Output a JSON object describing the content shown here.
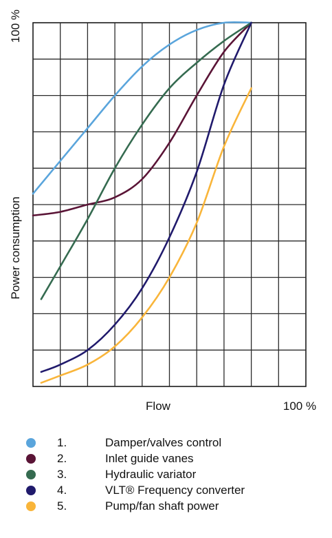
{
  "chart_data": {
    "type": "line",
    "title": "",
    "xlabel": "Flow",
    "ylabel": "Power consumption",
    "x_end_label": "100 %",
    "y_end_label": "100 %",
    "xlim": [
      0,
      100
    ],
    "ylim": [
      0,
      100
    ],
    "grid": true,
    "legend_position": "bottom",
    "series": [
      {
        "num": "1.",
        "name": "Damper/valves control",
        "color": "#5aa5dc",
        "points": [
          [
            0,
            53
          ],
          [
            10,
            62
          ],
          [
            20,
            71
          ],
          [
            30,
            80
          ],
          [
            40,
            88
          ],
          [
            50,
            94
          ],
          [
            60,
            98
          ],
          [
            70,
            100
          ],
          [
            80,
            100
          ]
        ]
      },
      {
        "num": "2.",
        "name": "Inlet guide vanes",
        "color": "#5a1436",
        "points": [
          [
            0,
            47
          ],
          [
            10,
            48
          ],
          [
            20,
            50
          ],
          [
            30,
            52
          ],
          [
            40,
            57
          ],
          [
            50,
            67
          ],
          [
            60,
            80
          ],
          [
            70,
            92
          ],
          [
            80,
            100
          ]
        ]
      },
      {
        "num": "3.",
        "name": "Hydraulic variator",
        "color": "#356b50",
        "points": [
          [
            3,
            24
          ],
          [
            10,
            33
          ],
          [
            20,
            46
          ],
          [
            30,
            60
          ],
          [
            40,
            72
          ],
          [
            50,
            82
          ],
          [
            60,
            89
          ],
          [
            70,
            95
          ],
          [
            80,
            100
          ]
        ]
      },
      {
        "num": "4.",
        "name": "VLT® Frequency converter",
        "color": "#201a6c",
        "points": [
          [
            3,
            4
          ],
          [
            10,
            6
          ],
          [
            20,
            10
          ],
          [
            30,
            17
          ],
          [
            40,
            27
          ],
          [
            50,
            41
          ],
          [
            60,
            59
          ],
          [
            70,
            83
          ],
          [
            80,
            100
          ]
        ]
      },
      {
        "num": "5.",
        "name": "Pump/fan shaft power",
        "color": "#f9b53a",
        "points": [
          [
            3,
            1
          ],
          [
            10,
            3
          ],
          [
            20,
            6
          ],
          [
            30,
            11
          ],
          [
            40,
            19
          ],
          [
            50,
            30
          ],
          [
            60,
            45
          ],
          [
            70,
            66
          ],
          [
            80,
            82
          ]
        ]
      }
    ]
  }
}
